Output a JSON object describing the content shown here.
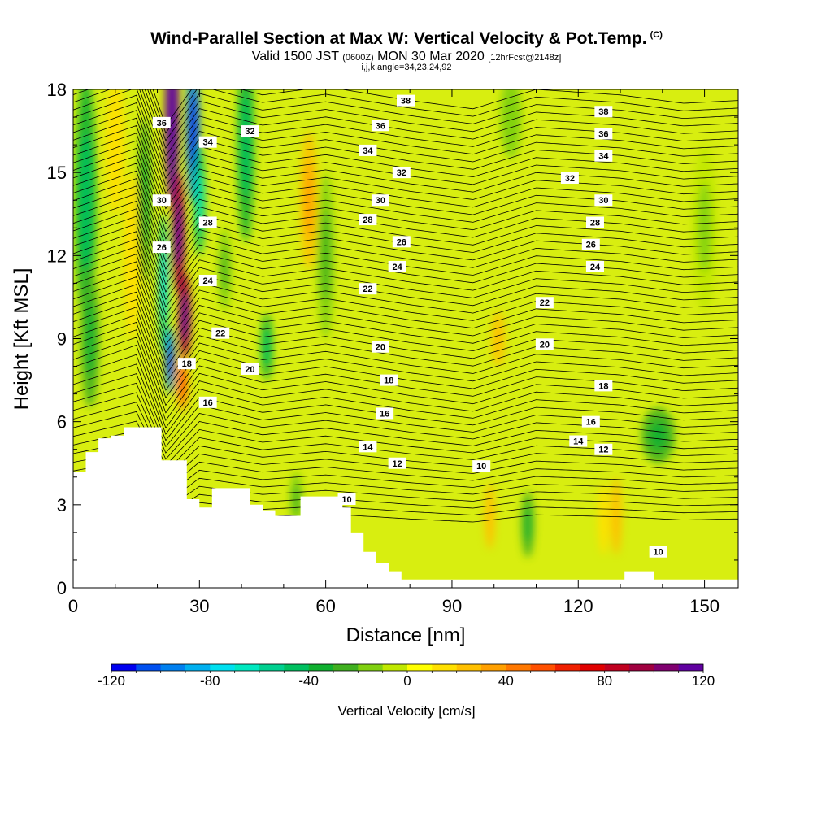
{
  "header": {
    "title": "Wind-Parallel Section at Max W: Vertical Velocity & Pot.Temp.",
    "title_mark": "(C)",
    "valid_prefix": "Valid 1500 JST",
    "valid_utc": "(0600Z)",
    "valid_date": "MON 30 Mar 2020",
    "forecast": "[12hrFcst@2148z]",
    "params": "i,j,k,angle=34,23,24,92"
  },
  "chart_data": {
    "type": "heatmap",
    "xlabel": "Distance [nm]",
    "ylabel": "Height [Kft MSL]",
    "xlim": [
      0,
      158
    ],
    "ylim": [
      0,
      18
    ],
    "x_ticks": [
      0,
      30,
      60,
      90,
      120,
      150
    ],
    "y_ticks": [
      0,
      3,
      6,
      9,
      12,
      15,
      18
    ],
    "colorbar": {
      "title": "Vertical Velocity [cm/s]",
      "range": [
        -120,
        120
      ],
      "labels": [
        -120,
        -80,
        -40,
        0,
        40,
        80,
        120
      ],
      "colors": [
        "#0000f0",
        "#0050f0",
        "#0080f0",
        "#00b0f0",
        "#00e0f0",
        "#00e8c0",
        "#00d090",
        "#00c060",
        "#10b030",
        "#40b020",
        "#80d010",
        "#c0e800",
        "#ffff00",
        "#ffe000",
        "#ffc000",
        "#ffa000",
        "#ff7800",
        "#ff5000",
        "#f02000",
        "#e00000",
        "#c00020",
        "#a00040",
        "#800070",
        "#6000a0"
      ]
    },
    "theta_contour_labels": [
      10,
      12,
      14,
      16,
      18,
      20,
      22,
      24,
      26,
      28,
      30,
      32,
      34,
      36,
      38
    ],
    "contour_labels": [
      {
        "v": 36,
        "x": 21,
        "y": 16.8
      },
      {
        "v": 34,
        "x": 32,
        "y": 16.1
      },
      {
        "v": 32,
        "x": 42,
        "y": 16.5
      },
      {
        "v": 30,
        "x": 21,
        "y": 14.0
      },
      {
        "v": 28,
        "x": 32,
        "y": 13.2
      },
      {
        "v": 26,
        "x": 21,
        "y": 12.3
      },
      {
        "v": 24,
        "x": 32,
        "y": 11.1
      },
      {
        "v": 22,
        "x": 35,
        "y": 9.2
      },
      {
        "v": 20,
        "x": 42,
        "y": 7.9
      },
      {
        "v": 18,
        "x": 27,
        "y": 8.1
      },
      {
        "v": 16,
        "x": 32,
        "y": 6.7
      },
      {
        "v": 38,
        "x": 79,
        "y": 17.6
      },
      {
        "v": 36,
        "x": 73,
        "y": 16.7
      },
      {
        "v": 34,
        "x": 70,
        "y": 15.8
      },
      {
        "v": 32,
        "x": 78,
        "y": 15.0
      },
      {
        "v": 30,
        "x": 73,
        "y": 14.0
      },
      {
        "v": 28,
        "x": 70,
        "y": 13.3
      },
      {
        "v": 26,
        "x": 78,
        "y": 12.5
      },
      {
        "v": 24,
        "x": 77,
        "y": 11.6
      },
      {
        "v": 22,
        "x": 70,
        "y": 10.8
      },
      {
        "v": 20,
        "x": 73,
        "y": 8.7
      },
      {
        "v": 18,
        "x": 75,
        "y": 7.5
      },
      {
        "v": 16,
        "x": 74,
        "y": 6.3
      },
      {
        "v": 14,
        "x": 70,
        "y": 5.1
      },
      {
        "v": 12,
        "x": 77,
        "y": 4.5
      },
      {
        "v": 10,
        "x": 65,
        "y": 3.2
      },
      {
        "v": 38,
        "x": 126,
        "y": 17.2
      },
      {
        "v": 36,
        "x": 126,
        "y": 16.4
      },
      {
        "v": 34,
        "x": 126,
        "y": 15.6
      },
      {
        "v": 32,
        "x": 118,
        "y": 14.8
      },
      {
        "v": 30,
        "x": 126,
        "y": 14.0
      },
      {
        "v": 28,
        "x": 124,
        "y": 13.2
      },
      {
        "v": 26,
        "x": 123,
        "y": 12.4
      },
      {
        "v": 24,
        "x": 124,
        "y": 11.6
      },
      {
        "v": 22,
        "x": 112,
        "y": 10.3
      },
      {
        "v": 20,
        "x": 112,
        "y": 8.8
      },
      {
        "v": 18,
        "x": 126,
        "y": 7.3
      },
      {
        "v": 16,
        "x": 123,
        "y": 6.0
      },
      {
        "v": 14,
        "x": 120,
        "y": 5.3
      },
      {
        "v": 12,
        "x": 126,
        "y": 5.0
      },
      {
        "v": 10,
        "x": 97,
        "y": 4.4
      },
      {
        "v": 10,
        "x": 139,
        "y": 1.3
      }
    ],
    "terrain": {
      "x": [
        0,
        3,
        3,
        6,
        6,
        9,
        9,
        12,
        12,
        21,
        21,
        27,
        27,
        30,
        30,
        33,
        33,
        37,
        37,
        42,
        42,
        45,
        45,
        48,
        48,
        51,
        51,
        54,
        54,
        61,
        61,
        64,
        64,
        66,
        66,
        69,
        69,
        72,
        72,
        75,
        75,
        78,
        78,
        81,
        81,
        84,
        84,
        131,
        131,
        138,
        138,
        158
      ],
      "h": [
        4.2,
        4.2,
        4.9,
        4.9,
        5.4,
        5.4,
        5.5,
        5.5,
        5.8,
        5.8,
        4.6,
        4.6,
        3.2,
        3.2,
        2.9,
        2.9,
        3.6,
        3.6,
        3.6,
        3.6,
        3.0,
        3.0,
        2.8,
        2.8,
        2.6,
        2.6,
        2.6,
        2.6,
        3.3,
        3.3,
        3.3,
        3.3,
        2.9,
        2.9,
        2.0,
        2.0,
        1.3,
        1.3,
        0.9,
        0.9,
        0.6,
        0.6,
        0.3,
        0.3,
        0.3,
        0.3,
        0.3,
        0.3,
        0.6,
        0.6,
        0.3,
        0.3
      ]
    },
    "w_features": [
      {
        "x": 23.5,
        "y": 17,
        "sx": 1.7,
        "sy": 3.2,
        "a": 125
      },
      {
        "x": 25,
        "y": 12.8,
        "sx": 1.6,
        "sy": 2.2,
        "a": 95
      },
      {
        "x": 26.5,
        "y": 9.8,
        "sx": 1.5,
        "sy": 1.6,
        "a": 90
      },
      {
        "x": 26,
        "y": 7.4,
        "sx": 1.2,
        "sy": 1.0,
        "a": 45
      },
      {
        "x": 28.5,
        "y": 16.5,
        "sx": 1.6,
        "sy": 2.6,
        "a": -100
      },
      {
        "x": 21.5,
        "y": 11,
        "sx": 1.2,
        "sy": 2.5,
        "a": -60
      },
      {
        "x": 23,
        "y": 8.2,
        "sx": 1.1,
        "sy": 1.2,
        "a": -95
      },
      {
        "x": 30,
        "y": 14,
        "sx": 1.4,
        "sy": 2.0,
        "a": -50
      },
      {
        "x": 3,
        "y": 14,
        "sx": 2.5,
        "sy": 4.5,
        "a": -35
      },
      {
        "x": 4,
        "y": 9,
        "sx": 2.2,
        "sy": 2.5,
        "a": -25
      },
      {
        "x": 10,
        "y": 16,
        "sx": 2.2,
        "sy": 2.5,
        "a": 12
      },
      {
        "x": 14,
        "y": 12,
        "sx": 2.0,
        "sy": 3.0,
        "a": 10
      },
      {
        "x": 17,
        "y": 14,
        "sx": 1.5,
        "sy": 3.0,
        "a": -30
      },
      {
        "x": 41,
        "y": 16,
        "sx": 2.0,
        "sy": 3.5,
        "a": -35
      },
      {
        "x": 46,
        "y": 8.7,
        "sx": 1.4,
        "sy": 1.2,
        "a": -38
      },
      {
        "x": 36,
        "y": 11.5,
        "sx": 1.5,
        "sy": 1.5,
        "a": -18
      },
      {
        "x": 56,
        "y": 14,
        "sx": 2.0,
        "sy": 2.5,
        "a": 25
      },
      {
        "x": 60,
        "y": 12,
        "sx": 2.0,
        "sy": 3.0,
        "a": -20
      },
      {
        "x": 53,
        "y": 3.2,
        "sx": 1.5,
        "sy": 1.0,
        "a": -20
      },
      {
        "x": 99,
        "y": 2.6,
        "sx": 1.2,
        "sy": 1.2,
        "a": 20
      },
      {
        "x": 108,
        "y": 2.3,
        "sx": 1.5,
        "sy": 1.2,
        "a": -30
      },
      {
        "x": 126,
        "y": 2.5,
        "sx": 1.3,
        "sy": 1.3,
        "a": 15
      },
      {
        "x": 129,
        "y": 2.6,
        "sx": 1.3,
        "sy": 1.4,
        "a": 20
      },
      {
        "x": 139,
        "y": 5.5,
        "sx": 4.0,
        "sy": 1.0,
        "a": -30
      },
      {
        "x": 104,
        "y": 17,
        "sx": 2.5,
        "sy": 1.5,
        "a": -15
      },
      {
        "x": 150,
        "y": 13,
        "sx": 3.0,
        "sy": 3.0,
        "a": -10
      },
      {
        "x": 101,
        "y": 9,
        "sx": 1.5,
        "sy": 1.0,
        "a": 20
      }
    ]
  }
}
